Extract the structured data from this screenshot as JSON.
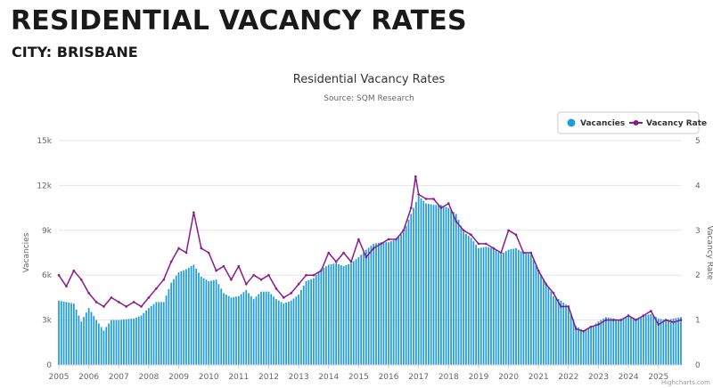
{
  "page": {
    "heading": "RESIDENTIAL VACANCY RATES",
    "city": "CITY: BRISBANE"
  },
  "chart_data": {
    "type": "bar",
    "title": "Residential Vacancy Rates",
    "subtitle": "Source: SQM Research",
    "credits": "Highcharts.com",
    "legend_position": "top-right",
    "grid": true,
    "x_ticks": [
      "2005",
      "2006",
      "2007",
      "2008",
      "2009",
      "2010",
      "2011",
      "2012",
      "2013",
      "2014",
      "2015",
      "2016",
      "2017",
      "2018",
      "2019",
      "2020",
      "2021",
      "2022",
      "2023",
      "2024",
      "2025"
    ],
    "x_range": [
      2005.0,
      2025.75
    ],
    "y_left": {
      "label": "Vacancies",
      "min": 0,
      "max": 15000,
      "tick_values": [
        0,
        3000,
        6000,
        9000,
        12000,
        15000
      ],
      "tick_labels": [
        "0",
        "3k",
        "6k",
        "9k",
        "12k",
        "15k"
      ]
    },
    "y_right": {
      "label": "Vacancy Rate",
      "min": 0,
      "max": 5,
      "tick_labels": [
        "0",
        "1",
        "2",
        "3",
        "4",
        "5"
      ]
    },
    "series": [
      {
        "name": "Vacancies",
        "type": "column",
        "color": "#1f9bd8",
        "points": [
          [
            2005.0,
            4300
          ],
          [
            2005.5,
            4100
          ],
          [
            2005.75,
            2900
          ],
          [
            2006.0,
            3800
          ],
          [
            2006.25,
            3000
          ],
          [
            2006.5,
            2300
          ],
          [
            2006.75,
            3000
          ],
          [
            2007.0,
            3000
          ],
          [
            2007.5,
            3100
          ],
          [
            2007.75,
            3300
          ],
          [
            2008.0,
            3800
          ],
          [
            2008.25,
            4200
          ],
          [
            2008.5,
            4200
          ],
          [
            2008.75,
            5500
          ],
          [
            2009.0,
            6200
          ],
          [
            2009.25,
            6400
          ],
          [
            2009.5,
            6700
          ],
          [
            2009.75,
            5900
          ],
          [
            2010.0,
            5600
          ],
          [
            2010.25,
            5700
          ],
          [
            2010.5,
            4800
          ],
          [
            2010.75,
            4500
          ],
          [
            2011.0,
            4600
          ],
          [
            2011.25,
            5000
          ],
          [
            2011.5,
            4400
          ],
          [
            2011.75,
            4900
          ],
          [
            2012.0,
            4900
          ],
          [
            2012.25,
            4400
          ],
          [
            2012.5,
            4100
          ],
          [
            2012.75,
            4300
          ],
          [
            2013.0,
            4700
          ],
          [
            2013.25,
            5600
          ],
          [
            2013.5,
            5800
          ],
          [
            2013.75,
            6400
          ],
          [
            2014.0,
            6700
          ],
          [
            2014.25,
            6800
          ],
          [
            2014.5,
            6600
          ],
          [
            2014.75,
            6800
          ],
          [
            2015.0,
            7200
          ],
          [
            2015.25,
            7700
          ],
          [
            2015.5,
            8100
          ],
          [
            2015.75,
            8200
          ],
          [
            2016.0,
            8200
          ],
          [
            2016.25,
            8400
          ],
          [
            2016.5,
            8900
          ],
          [
            2016.75,
            10100
          ],
          [
            2017.0,
            11300
          ],
          [
            2017.25,
            10800
          ],
          [
            2017.5,
            10700
          ],
          [
            2017.75,
            10700
          ],
          [
            2018.0,
            10500
          ],
          [
            2018.25,
            10100
          ],
          [
            2018.5,
            8900
          ],
          [
            2018.75,
            8500
          ],
          [
            2019.0,
            7800
          ],
          [
            2019.25,
            7900
          ],
          [
            2019.5,
            7800
          ],
          [
            2019.75,
            7400
          ],
          [
            2020.0,
            7700
          ],
          [
            2020.25,
            7800
          ],
          [
            2020.5,
            7500
          ],
          [
            2020.75,
            7400
          ],
          [
            2021.0,
            6300
          ],
          [
            2021.25,
            5500
          ],
          [
            2021.5,
            4600
          ],
          [
            2021.75,
            4300
          ],
          [
            2022.0,
            3900
          ],
          [
            2022.25,
            2600
          ],
          [
            2022.5,
            2300
          ],
          [
            2022.75,
            2500
          ],
          [
            2023.0,
            2900
          ],
          [
            2023.25,
            3200
          ],
          [
            2023.5,
            3100
          ],
          [
            2023.75,
            3000
          ],
          [
            2024.0,
            3300
          ],
          [
            2024.25,
            3100
          ],
          [
            2024.5,
            3300
          ],
          [
            2024.75,
            3400
          ],
          [
            2025.0,
            3100
          ],
          [
            2025.25,
            3000
          ],
          [
            2025.5,
            3100
          ],
          [
            2025.75,
            3200
          ]
        ]
      },
      {
        "name": "Vacancy Rate",
        "type": "line",
        "axis": "right",
        "color": "#8b1a8b",
        "points": [
          [
            2005.0,
            2.0
          ],
          [
            2005.25,
            1.75
          ],
          [
            2005.5,
            2.1
          ],
          [
            2005.75,
            1.9
          ],
          [
            2006.0,
            1.6
          ],
          [
            2006.25,
            1.4
          ],
          [
            2006.5,
            1.3
          ],
          [
            2006.75,
            1.5
          ],
          [
            2007.0,
            1.4
          ],
          [
            2007.25,
            1.3
          ],
          [
            2007.5,
            1.4
          ],
          [
            2007.75,
            1.3
          ],
          [
            2008.0,
            1.5
          ],
          [
            2008.25,
            1.7
          ],
          [
            2008.5,
            1.9
          ],
          [
            2008.75,
            2.3
          ],
          [
            2009.0,
            2.6
          ],
          [
            2009.25,
            2.5
          ],
          [
            2009.5,
            3.4
          ],
          [
            2009.75,
            2.6
          ],
          [
            2010.0,
            2.5
          ],
          [
            2010.25,
            2.1
          ],
          [
            2010.5,
            2.2
          ],
          [
            2010.75,
            1.9
          ],
          [
            2011.0,
            2.2
          ],
          [
            2011.25,
            1.8
          ],
          [
            2011.5,
            2.0
          ],
          [
            2011.75,
            1.9
          ],
          [
            2012.0,
            2.0
          ],
          [
            2012.25,
            1.7
          ],
          [
            2012.5,
            1.5
          ],
          [
            2012.75,
            1.6
          ],
          [
            2013.0,
            1.8
          ],
          [
            2013.25,
            2.0
          ],
          [
            2013.5,
            2.0
          ],
          [
            2013.75,
            2.1
          ],
          [
            2014.0,
            2.5
          ],
          [
            2014.25,
            2.3
          ],
          [
            2014.5,
            2.5
          ],
          [
            2014.75,
            2.3
          ],
          [
            2015.0,
            2.8
          ],
          [
            2015.25,
            2.4
          ],
          [
            2015.5,
            2.6
          ],
          [
            2015.75,
            2.7
          ],
          [
            2016.0,
            2.8
          ],
          [
            2016.25,
            2.8
          ],
          [
            2016.5,
            3.0
          ],
          [
            2016.75,
            3.5
          ],
          [
            2016.9,
            4.2
          ],
          [
            2017.0,
            3.8
          ],
          [
            2017.25,
            3.7
          ],
          [
            2017.5,
            3.7
          ],
          [
            2017.75,
            3.5
          ],
          [
            2018.0,
            3.6
          ],
          [
            2018.25,
            3.2
          ],
          [
            2018.5,
            3.0
          ],
          [
            2018.75,
            2.9
          ],
          [
            2019.0,
            2.7
          ],
          [
            2019.25,
            2.7
          ],
          [
            2019.5,
            2.6
          ],
          [
            2019.75,
            2.5
          ],
          [
            2020.0,
            3.0
          ],
          [
            2020.25,
            2.9
          ],
          [
            2020.5,
            2.5
          ],
          [
            2020.75,
            2.5
          ],
          [
            2021.0,
            2.1
          ],
          [
            2021.25,
            1.8
          ],
          [
            2021.5,
            1.6
          ],
          [
            2021.75,
            1.3
          ],
          [
            2022.0,
            1.3
          ],
          [
            2022.25,
            0.8
          ],
          [
            2022.5,
            0.75
          ],
          [
            2022.75,
            0.85
          ],
          [
            2023.0,
            0.9
          ],
          [
            2023.25,
            1.0
          ],
          [
            2023.5,
            1.0
          ],
          [
            2023.75,
            1.0
          ],
          [
            2024.0,
            1.1
          ],
          [
            2024.25,
            1.0
          ],
          [
            2024.5,
            1.1
          ],
          [
            2024.75,
            1.2
          ],
          [
            2025.0,
            0.9
          ],
          [
            2025.25,
            1.0
          ],
          [
            2025.5,
            0.95
          ],
          [
            2025.75,
            1.0
          ]
        ]
      }
    ]
  }
}
